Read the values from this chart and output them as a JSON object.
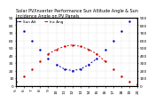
{
  "title": "Solar PV/Inverter Performance Sun Altitude Angle & Sun Incidence Angle on PV Panels",
  "legend_label1": "Sun Alt",
  "legend_label2": "Inc Ang",
  "x_values": [
    5,
    6,
    7,
    8,
    9,
    10,
    11,
    12,
    13,
    14,
    15,
    16,
    17,
    18,
    19,
    20
  ],
  "sun_altitude": [
    85,
    72,
    60,
    48,
    36,
    28,
    22,
    20,
    22,
    28,
    36,
    48,
    60,
    72,
    85,
    90
  ],
  "sun_incidence": [
    5,
    12,
    22,
    32,
    42,
    48,
    52,
    54,
    52,
    48,
    42,
    32,
    22,
    12,
    5,
    2
  ],
  "blue_color": "#0000cc",
  "red_color": "#cc0000",
  "bg_color": "#ffffff",
  "grid_color": "#aaaaaa",
  "title_fontsize": 3.5,
  "tick_fontsize": 3.2,
  "ylim": [
    0,
    90
  ],
  "xlim": [
    5,
    20
  ],
  "y_left_ticks": [
    0,
    10,
    20,
    30,
    40,
    50,
    60,
    70,
    80,
    90
  ],
  "y_left_labels": [
    "0",
    "10",
    "20",
    "30",
    "40",
    "50",
    "60",
    "70",
    "80",
    "90"
  ],
  "y_right_ticks": [
    0,
    10,
    20,
    30,
    40,
    50,
    60,
    70,
    80,
    90
  ],
  "y_right_labels": [
    "0",
    "100",
    "200",
    "300",
    "400",
    "500",
    "600",
    "700",
    "800",
    "900"
  ]
}
